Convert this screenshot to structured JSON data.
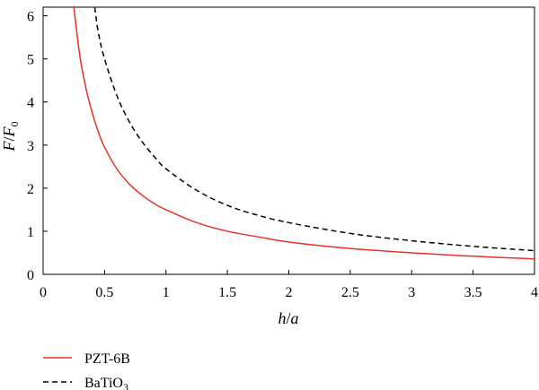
{
  "chart_data": {
    "type": "line",
    "title": "",
    "xlabel": {
      "main": "h",
      "sep": "/",
      "tail": "a"
    },
    "ylabel": {
      "main": "F",
      "sep": "/",
      "tail": "F",
      "sub": "0"
    },
    "xlim": [
      0,
      4
    ],
    "ylim": [
      0,
      6.2
    ],
    "xticks": [
      0,
      0.5,
      1,
      1.5,
      2,
      2.5,
      3,
      3.5,
      4
    ],
    "xtick_labels": [
      "0",
      "0.5",
      "1",
      "1.5",
      "2",
      "2.5",
      "3",
      "3.5",
      "4"
    ],
    "yticks": [
      0,
      1,
      2,
      3,
      4,
      5,
      6
    ],
    "ytick_labels": [
      "0",
      "1",
      "2",
      "3",
      "4",
      "5",
      "6"
    ],
    "grid": false,
    "legend_position": "bottom-left, below plot",
    "series": [
      {
        "name": "PZT-6B",
        "color": "#e8312a",
        "dash": "solid",
        "x": [
          0.25,
          0.3,
          0.35,
          0.4,
          0.45,
          0.5,
          0.6,
          0.7,
          0.8,
          0.9,
          1.0,
          1.25,
          1.5,
          1.75,
          2.0,
          2.5,
          3.0,
          3.5,
          4.0
        ],
        "y": [
          6.2,
          5.05,
          4.3,
          3.75,
          3.3,
          2.95,
          2.45,
          2.1,
          1.85,
          1.65,
          1.5,
          1.2,
          1.0,
          0.87,
          0.75,
          0.6,
          0.5,
          0.42,
          0.36
        ]
      },
      {
        "name": "BaTiO",
        "name_sub": "3",
        "color": "#000000",
        "dash": "dashed",
        "x": [
          0.42,
          0.45,
          0.5,
          0.6,
          0.7,
          0.8,
          0.9,
          1.0,
          1.25,
          1.5,
          1.75,
          2.0,
          2.5,
          3.0,
          3.5,
          4.0
        ],
        "y": [
          6.2,
          5.6,
          5.0,
          4.15,
          3.55,
          3.1,
          2.75,
          2.45,
          1.95,
          1.6,
          1.37,
          1.2,
          0.95,
          0.78,
          0.65,
          0.55
        ]
      }
    ]
  }
}
